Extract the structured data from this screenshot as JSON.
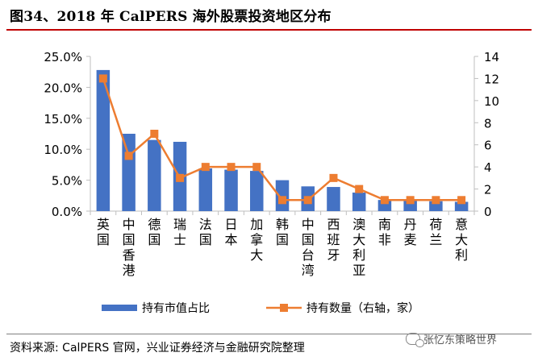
{
  "title": "图34、2018 年 CalPERS 海外股票投资地区分布",
  "source": "资料来源: CalPERS 官网，兴业证券经济与金融研究院整理",
  "watermark": "张忆东策略世界",
  "colors": {
    "bar": "#4472c4",
    "line": "#ed7d31",
    "rule": "#c00000"
  },
  "chart_data": {
    "type": "bar+line",
    "categories": [
      "英国",
      "中国香港",
      "德国",
      "瑞士",
      "法国",
      "日本",
      "加拿大",
      "韩国",
      "中国台湾",
      "西班牙",
      "澳大利亚",
      "南非",
      "丹麦",
      "荷兰",
      "意大利"
    ],
    "series": [
      {
        "name": "持有市值占比",
        "type": "bar",
        "axis": "left",
        "values": [
          22.8,
          12.5,
          11.5,
          11.2,
          6.9,
          6.7,
          6.5,
          5.0,
          4.0,
          3.9,
          3.0,
          1.8,
          1.7,
          1.6,
          1.5
        ]
      },
      {
        "name": "持有数量（右轴，家）",
        "type": "line",
        "axis": "right",
        "values": [
          12,
          5,
          7,
          3,
          4,
          4,
          4,
          1,
          1,
          3,
          2,
          1,
          1,
          1,
          1
        ]
      }
    ],
    "yleft": {
      "min": 0,
      "max": 25,
      "ticks": [
        "0.0%",
        "5.0%",
        "10.0%",
        "15.0%",
        "20.0%",
        "25.0%"
      ],
      "tick_values": [
        0,
        5,
        10,
        15,
        20,
        25
      ]
    },
    "yright": {
      "min": 0,
      "max": 14,
      "ticks": [
        "0",
        "2",
        "4",
        "6",
        "8",
        "10",
        "12",
        "14"
      ],
      "tick_values": [
        0,
        2,
        4,
        6,
        8,
        10,
        12,
        14
      ]
    },
    "grid": false,
    "legend": "bottom"
  }
}
